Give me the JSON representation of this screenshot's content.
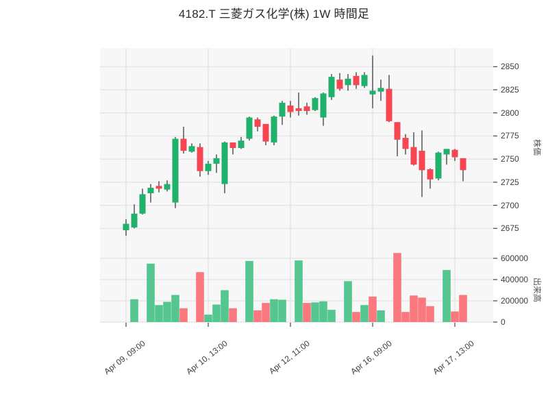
{
  "title": "4182.T 三菱ガス化学(株) 1W 時間足",
  "price_axis": {
    "label": "株価",
    "ticks": [
      2850,
      2825,
      2800,
      2775,
      2750,
      2725,
      2700,
      2675
    ]
  },
  "volume_axis": {
    "label": "出来高",
    "ticks": [
      600000,
      400000,
      200000,
      0
    ]
  },
  "x_axis": {
    "ticks": [
      {
        "index": 0,
        "label": "Apr 09, 09:00"
      },
      {
        "index": 10,
        "label": "Apr 10, 13:00"
      },
      {
        "index": 20,
        "label": "Apr 12, 11:00"
      },
      {
        "index": 30,
        "label": "Apr 16, 09:00"
      },
      {
        "index": 40,
        "label": "Apr 17, 13:00"
      }
    ]
  },
  "colors": {
    "up": "#20b26c",
    "down": "#f64652",
    "vol_up": "#55c690",
    "vol_down": "#f9797e",
    "wick": "#3c3c3c",
    "plot_bg": "#f7f7f7",
    "grid": "#e2e2e2",
    "tick": "#444444",
    "text": "#3d3d3d"
  },
  "chart_data": {
    "type": "candlestick+volume-bar",
    "symbol": "4182.T",
    "name": "三菱ガス化学(株)",
    "period": "1W",
    "interval": "時間足",
    "price_axis_label": "株価",
    "volume_axis_label": "出来高",
    "price_range_hint": [
      2661,
      2870
    ],
    "volume_range_hint": [
      0,
      720000
    ],
    "grid": true,
    "x": [
      "Apr 09, 09:00",
      "Apr 09, 10:00",
      "Apr 09, 11:00",
      "Apr 09, 12:00",
      "Apr 09, 13:00",
      "Apr 09, 14:00",
      "Apr 10, 09:00",
      "Apr 10, 10:00",
      "Apr 10, 11:00",
      "Apr 10, 12:00",
      "Apr 10, 13:00",
      "Apr 10, 14:00",
      "Apr 11, 09:00",
      "Apr 11, 10:00",
      "Apr 11, 11:00",
      "Apr 11, 12:00",
      "Apr 11, 13:00",
      "Apr 11, 14:00",
      "Apr 12, 09:00",
      "Apr 12, 10:00",
      "Apr 12, 11:00",
      "Apr 12, 12:00",
      "Apr 12, 13:00",
      "Apr 12, 14:00",
      "Apr 15, 09:00",
      "Apr 15, 10:00",
      "Apr 15, 11:00",
      "Apr 15, 12:00",
      "Apr 15, 13:00",
      "Apr 15, 14:00",
      "Apr 16, 09:00",
      "Apr 16, 10:00",
      "Apr 16, 11:00",
      "Apr 16, 12:00",
      "Apr 16, 13:00",
      "Apr 16, 14:00",
      "Apr 17, 09:00",
      "Apr 17, 10:00",
      "Apr 17, 11:00",
      "Apr 17, 12:00",
      "Apr 17, 13:00",
      "Apr 17, 14:00"
    ],
    "ohlc": [
      [
        2673,
        2685,
        2667,
        2680
      ],
      [
        2676,
        2701,
        2675,
        2691
      ],
      [
        2691,
        2718,
        2690,
        2712
      ],
      [
        2713,
        2723,
        2703,
        2719
      ],
      [
        2721,
        2726,
        2714,
        2718
      ],
      [
        2717,
        2727,
        2715,
        2723
      ],
      [
        2703,
        2774,
        2697,
        2772
      ],
      [
        2772,
        2785,
        2756,
        2759
      ],
      [
        2758,
        2767,
        2757,
        2764
      ],
      [
        2763,
        2767,
        2731,
        2737
      ],
      [
        2737,
        2748,
        2733,
        2745
      ],
      [
        2745,
        2755,
        2735,
        2751
      ],
      [
        2723,
        2769,
        2713,
        2768
      ],
      [
        2768,
        2768,
        2755,
        2762
      ],
      [
        2762,
        2774,
        2761,
        2770
      ],
      [
        2772,
        2796,
        2770,
        2795
      ],
      [
        2793,
        2795,
        2780,
        2785
      ],
      [
        2788,
        2788,
        2765,
        2769
      ],
      [
        2768,
        2797,
        2765,
        2796
      ],
      [
        2796,
        2813,
        2787,
        2811
      ],
      [
        2808,
        2813,
        2795,
        2801
      ],
      [
        2805,
        2822,
        2797,
        2802
      ],
      [
        2807,
        2811,
        2798,
        2802
      ],
      [
        2803,
        2817,
        2802,
        2816
      ],
      [
        2795,
        2822,
        2786,
        2821
      ],
      [
        2817,
        2842,
        2814,
        2839
      ],
      [
        2836,
        2843,
        2824,
        2826
      ],
      [
        2830,
        2842,
        2824,
        2837
      ],
      [
        2840,
        2844,
        2826,
        2830
      ],
      [
        2829,
        2844,
        2827,
        2841
      ],
      [
        2820,
        2862,
        2805,
        2824
      ],
      [
        2823,
        2836,
        2813,
        2827
      ],
      [
        2826,
        2841,
        2790,
        2791
      ],
      [
        2790,
        2790,
        2753,
        2771
      ],
      [
        2773,
        2777,
        2755,
        2761
      ],
      [
        2763,
        2779,
        2743,
        2744
      ],
      [
        2759,
        2781,
        2709,
        2738
      ],
      [
        2739,
        2740,
        2718,
        2728
      ],
      [
        2729,
        2758,
        2727,
        2757
      ],
      [
        2755,
        2761,
        2744,
        2761
      ],
      [
        2760,
        2761,
        2748,
        2752
      ],
      [
        2751,
        2751,
        2726,
        2738
      ]
    ],
    "volume": [
      0,
      215000,
      0,
      550000,
      160000,
      190000,
      255000,
      130000,
      0,
      470000,
      70000,
      165000,
      300000,
      130000,
      0,
      575000,
      110000,
      180000,
      215000,
      210000,
      0,
      580000,
      180000,
      185000,
      195000,
      115000,
      0,
      385000,
      95000,
      160000,
      240000,
      110000,
      0,
      650000,
      95000,
      250000,
      230000,
      150000,
      0,
      490000,
      100000,
      255000
    ],
    "volume_dir": [
      "",
      "up",
      "",
      "up",
      "up",
      "up",
      "up",
      "down",
      "",
      "down",
      "up",
      "up",
      "up",
      "down",
      "",
      "up",
      "down",
      "down",
      "up",
      "up",
      "",
      "up",
      "down",
      "up",
      "up",
      "up",
      "",
      "up",
      "down",
      "up",
      "down",
      "up",
      "",
      "down",
      "down",
      "down",
      "down",
      "down",
      "",
      "up",
      "down",
      "down"
    ]
  }
}
